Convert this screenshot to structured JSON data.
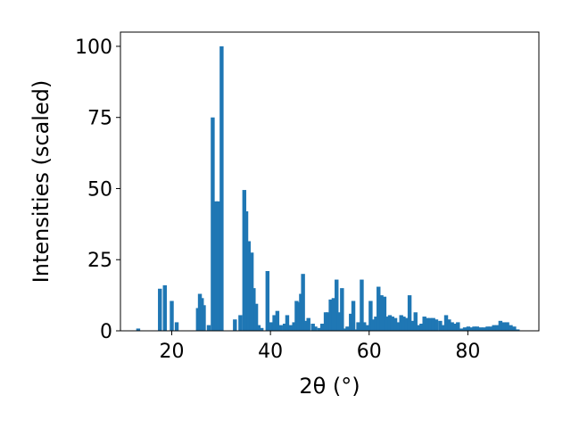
{
  "chart_data": {
    "type": "bar",
    "xlabel": "2θ (°)",
    "ylabel": "Intensities (scaled)",
    "xlim": [
      9.6,
      94.4
    ],
    "ylim": [
      0,
      105
    ],
    "x_ticks": [
      20,
      40,
      60,
      80
    ],
    "y_ticks": [
      0,
      25,
      50,
      75,
      100
    ],
    "bar_width": 0.8,
    "grid": false,
    "legend": "none",
    "color": "#1f77b4",
    "x": [
      13.2,
      17.6,
      18.6,
      20.0,
      21.0,
      25.3,
      25.7,
      26.1,
      26.5,
      27.5,
      28.3,
      29.0,
      29.4,
      30.1,
      32.8,
      33.9,
      34.7,
      35.1,
      35.6,
      36.2,
      36.6,
      37.1,
      37.6,
      38.2,
      39.4,
      40.2,
      40.8,
      41.4,
      42.1,
      42.9,
      43.4,
      44.1,
      44.8,
      45.3,
      45.8,
      46.2,
      46.6,
      47.2,
      47.7,
      48.6,
      49.1,
      49.9,
      50.5,
      51.2,
      51.6,
      52.2,
      52.8,
      53.4,
      53.9,
      54.5,
      55.0,
      55.6,
      56.3,
      56.8,
      57.3,
      57.8,
      58.5,
      59.0,
      59.6,
      60.3,
      60.8,
      61.4,
      61.9,
      62.5,
      63.1,
      63.6,
      64.2,
      64.7,
      65.3,
      65.9,
      66.5,
      67.0,
      67.6,
      68.2,
      68.8,
      69.4,
      70.0,
      70.6,
      71.2,
      71.8,
      72.4,
      73.0,
      73.6,
      74.4,
      75.0,
      75.6,
      76.2,
      76.8,
      77.4,
      78.0,
      78.7,
      79.4,
      80.1,
      80.7,
      81.3,
      81.9,
      82.6,
      83.3,
      84.0,
      84.6,
      85.3,
      86.0,
      86.6,
      87.3,
      88.0,
      88.7,
      89.4,
      90.1
    ],
    "values": [
      0.8,
      14.8,
      16,
      10.5,
      3,
      8,
      13,
      11.5,
      9,
      2,
      75,
      45.5,
      45.5,
      100,
      4,
      5.5,
      49.5,
      42,
      31.5,
      27.5,
      15,
      9.5,
      2,
      1,
      21,
      3,
      5.5,
      7,
      2,
      2.5,
      5.5,
      2,
      3,
      10.5,
      10,
      13,
      20,
      3.5,
      4.5,
      2.5,
      1.5,
      1,
      2.5,
      6.5,
      6.5,
      11,
      11.5,
      18,
      6.5,
      15,
      0.8,
      1.5,
      6,
      10.5,
      0.5,
      3,
      18,
      3,
      2,
      10.5,
      4,
      5,
      15.5,
      12.5,
      12,
      5,
      5.5,
      5,
      4.5,
      3,
      5.5,
      5,
      4.5,
      12.5,
      3.5,
      6.5,
      2,
      2.5,
      5,
      4.5,
      4.5,
      4.5,
      4,
      3.5,
      2,
      5.5,
      4,
      3,
      2.5,
      3,
      0.8,
      1.2,
      1.5,
      1.2,
      1.5,
      1.5,
      1.2,
      1.2,
      1.5,
      1.5,
      2,
      2,
      3.5,
      3,
      3,
      2,
      1.5,
      0.5
    ]
  }
}
